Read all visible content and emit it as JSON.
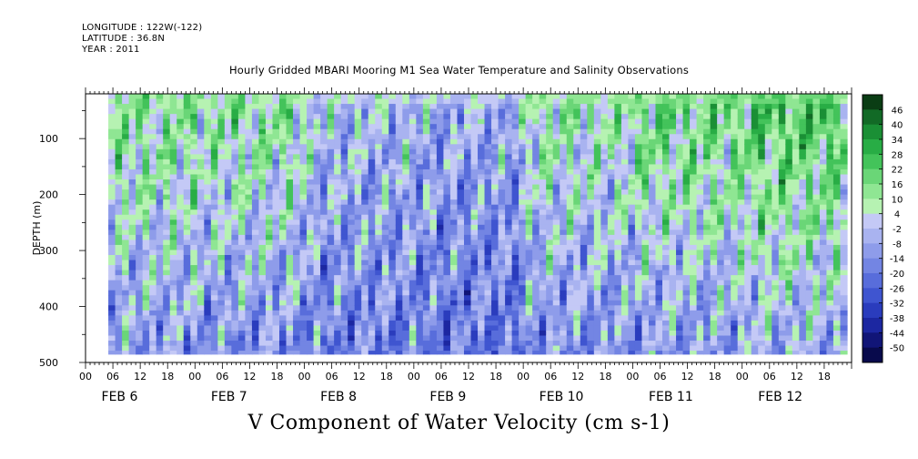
{
  "header": {
    "longitude": "LONGITUDE : 122W(-122)",
    "latitude": "LATITUDE : 36.8N",
    "year": "YEAR : 2011"
  },
  "chart_data": {
    "type": "heatmap",
    "title": "Hourly Gridded MBARI Mooring M1 Sea Water Temperature and Salinity Observations",
    "ylabel": "DEPTH (m)",
    "variable_label": "V Component of Water Velocity (cm s-1)",
    "y_axis": {
      "range": [
        20,
        500
      ],
      "inverted": true,
      "tick_labels": [
        "100",
        "200",
        "300",
        "400",
        "500"
      ]
    },
    "x_axis": {
      "range_hours": [
        0,
        168
      ],
      "hour_tick_labels": [
        "00",
        "06",
        "12",
        "18"
      ],
      "day_labels": [
        "FEB  6",
        "FEB  7",
        "FEB  8",
        "FEB  9",
        "FEB 10",
        "FEB 11",
        "FEB 12"
      ]
    },
    "data_range": {
      "start": "FEB 6 05:00",
      "end": "FEB 12 23:00",
      "depth_min": 20,
      "depth_max": 485
    },
    "colorbar": {
      "labels": [
        "46",
        "40",
        "34",
        "28",
        "22",
        "16",
        "10",
        "4",
        "-2",
        "-8",
        "-14",
        "-20",
        "-26",
        "-32",
        "-38",
        "-44",
        "-50"
      ],
      "colors": [
        "#0a3d14",
        "#126a26",
        "#1a8f35",
        "#28ad45",
        "#43c35a",
        "#6ad677",
        "#8fe693",
        "#b6f2b2",
        "#c4c9f6",
        "#a9b3f0",
        "#8e9cea",
        "#7385e3",
        "#586ddb",
        "#3f55d0",
        "#2a3cbd",
        "#1c27a1",
        "#111577",
        "#080a4c"
      ]
    },
    "pattern_summary": [
      {
        "day": "FEB 6",
        "upper_mean": 14,
        "lower_mean": -12
      },
      {
        "day": "FEB 7",
        "upper_mean": 12,
        "lower_mean": -14
      },
      {
        "day": "FEB 8",
        "upper_mean": -2,
        "lower_mean": -18
      },
      {
        "day": "FEB 9",
        "upper_mean": -6,
        "lower_mean": -20
      },
      {
        "day": "FEB 10",
        "upper_mean": 10,
        "lower_mean": -14
      },
      {
        "day": "FEB 11",
        "upper_mean": 18,
        "lower_mean": -12
      },
      {
        "day": "FEB 12",
        "upper_mean": 24,
        "lower_mean": -8
      }
    ]
  }
}
